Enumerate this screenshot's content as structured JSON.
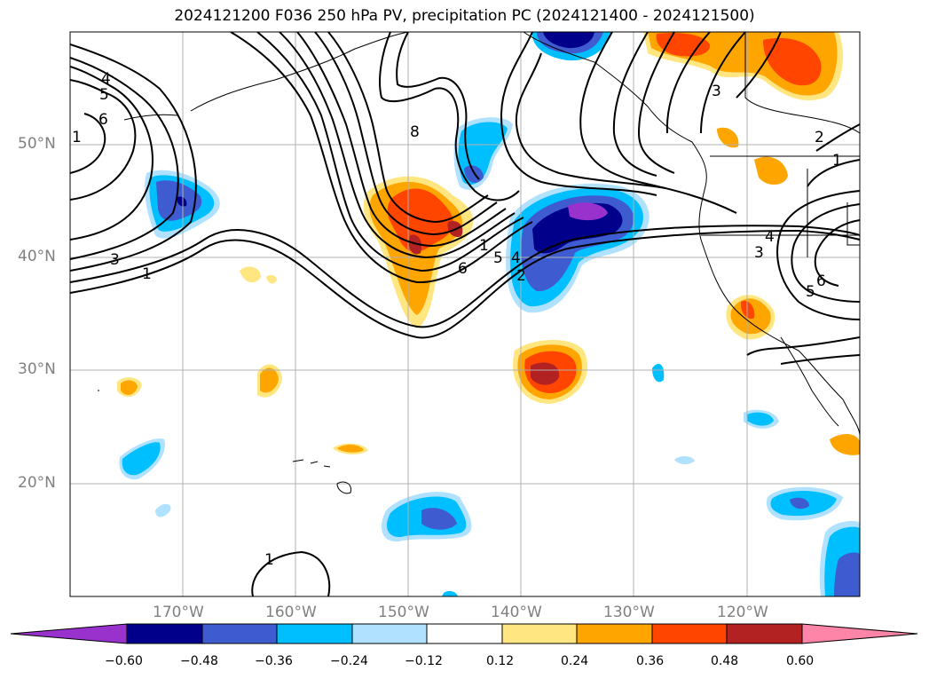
{
  "title": "2024121200 F036 250 hPa PV, precipitation PC (2024121400 - 2024121500)",
  "map": {
    "lon_range": [
      -180,
      -110
    ],
    "lat_range": [
      10,
      60
    ],
    "lat_ticks": [
      {
        "lat": 50,
        "label": "50°N"
      },
      {
        "lat": 40,
        "label": "40°N"
      },
      {
        "lat": 30,
        "label": "30°N"
      },
      {
        "lat": 20,
        "label": "20°N"
      }
    ],
    "lon_ticks": [
      {
        "lon": -170,
        "label": "170°W"
      },
      {
        "lon": -160,
        "label": "160°W"
      },
      {
        "lon": -150,
        "label": "150°W"
      },
      {
        "lon": -140,
        "label": "140°W"
      },
      {
        "lon": -130,
        "label": "130°W"
      },
      {
        "lon": -120,
        "label": "120°W"
      }
    ],
    "pv_contour_labels": [
      "4",
      "5",
      "6",
      "1",
      "3",
      "1",
      "8",
      "1",
      "6",
      "5",
      "4",
      "2",
      "3",
      "2",
      "1",
      "3",
      "4",
      "6",
      "5",
      "1"
    ]
  },
  "colorbar": {
    "levels": [
      "−0.60",
      "−0.48",
      "−0.36",
      "−0.24",
      "−0.12",
      "0.12",
      "0.24",
      "0.36",
      "0.48",
      "0.60"
    ],
    "colors": [
      "#9932cc",
      "#00008b",
      "#3f5bd0",
      "#00bfff",
      "#b0e2ff",
      "#ffffff",
      "#ffe680",
      "#ffa500",
      "#ff4500",
      "#b22222",
      "#ff85a8"
    ]
  }
}
